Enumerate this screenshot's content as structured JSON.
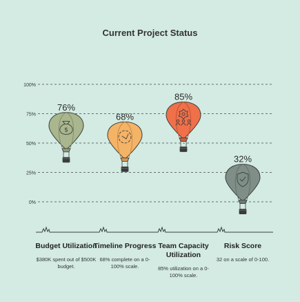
{
  "chart_data": {
    "type": "bar",
    "title": "Current Project Status",
    "categories": [
      "Budget Utilization",
      "Timeline Progress",
      "Team Capacity Utilization",
      "Risk Score"
    ],
    "values": [
      76,
      68,
      85,
      32
    ],
    "value_labels": [
      "76%",
      "68%",
      "85%",
      "32%"
    ],
    "descriptions": [
      "$380K spent out of $500K budget.",
      "68% complete on a 0-100% scale.",
      "85% utilization on a 0-100% scale.",
      "32 on a scale of 0-100."
    ],
    "ytick_values": [
      0,
      25,
      50,
      75,
      100
    ],
    "ytick_labels": [
      "0%",
      "25%",
      "50%",
      "75%",
      "100%"
    ],
    "ylim": [
      0,
      100
    ],
    "grid": true,
    "colors": [
      "#a9b68e",
      "#f5b366",
      "#f0704a",
      "#7f8f88"
    ],
    "icons": [
      "money-bag-icon",
      "progress-circle-icon",
      "team-icon",
      "shield-check-icon"
    ]
  }
}
